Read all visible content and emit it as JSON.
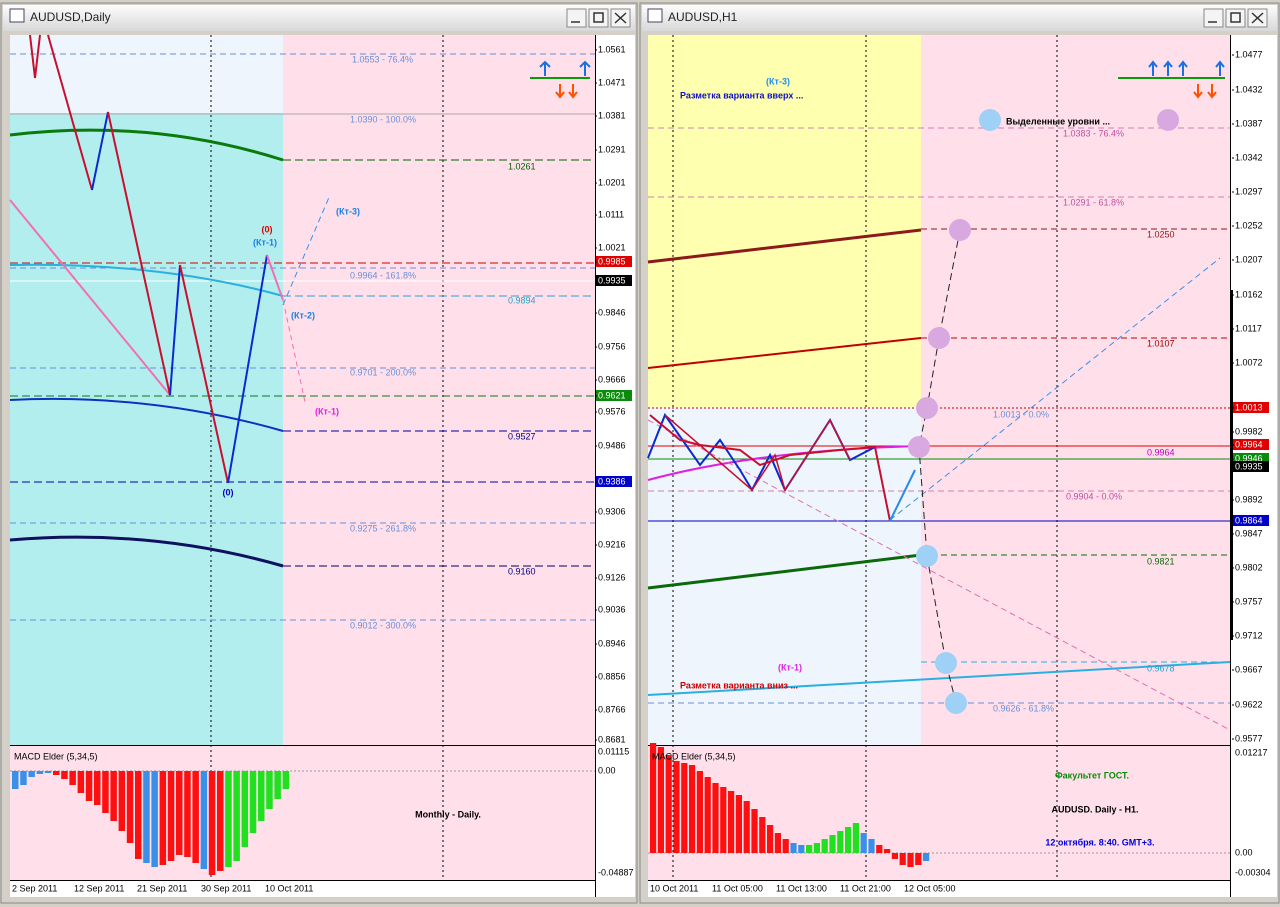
{
  "left": {
    "title": "AUDUSD,Daily",
    "price_axis": [
      "1.0561",
      "1.0471",
      "1.0381",
      "1.0291",
      "1.0201",
      "1.0111",
      "1.0021",
      "0.9985",
      "0.9935",
      "0.9846",
      "0.9756",
      "0.9666",
      "0.9621",
      "0.9576",
      "0.9486",
      "0.9386",
      "0.9306",
      "0.9216",
      "0.9126",
      "0.9036",
      "0.8946",
      "0.8856",
      "0.8766",
      "0.8681"
    ],
    "levels": [
      "1.0553 - 76.4%",
      "1.0390 - 100.0%",
      "1.0261",
      "0.9964 - 161.8%",
      "0.9894",
      "0.9701 - 200.0%",
      "0.9527",
      "0.9275 - 261.8%",
      "0.9160",
      "0.9012 - 300.0%"
    ],
    "annotations": [
      "(0)",
      "(Кт-1)",
      "(Кт-3)",
      "(Кт-2)",
      "(Кт-1)",
      "(0)"
    ],
    "macd": {
      "label": "MACD Elder (5,34,5)",
      "axis": [
        "0.01115",
        "0.00",
        "-0.04887"
      ]
    },
    "time_axis": [
      "2 Sep 2011",
      "12 Sep 2011",
      "21 Sep 2011",
      "30 Sep 2011",
      "10 Oct 2011"
    ],
    "caption": "Monthly - Daily."
  },
  "right": {
    "title": "AUDUSD,H1",
    "price_axis": [
      "1.0477",
      "1.0432",
      "1.0387",
      "1.0342",
      "1.0297",
      "1.0252",
      "1.0207",
      "1.0162",
      "1.0117",
      "1.0072",
      "1.0013",
      "0.9982",
      "0.9964",
      "0.9946",
      "0.9935",
      "0.9892",
      "0.9864",
      "0.9847",
      "0.9802",
      "0.9757",
      "0.9712",
      "0.9667",
      "0.9622",
      "0.9577"
    ],
    "levels": [
      "1.0383 - 76.4%",
      "1.0291 - 61.8%",
      "1.0250",
      "1.0107",
      "1.0013 - 0.0%",
      "0.9964",
      "0.9904 - 0.0%",
      "0.9821",
      "0.9678",
      "0.9626 - 61.8%"
    ],
    "annotations": [
      "(Кт-3)",
      "Разметка варианта вверх ...",
      "Выделенные уровни ...",
      "(Кт-1)",
      "Разметка варианта вниз ..."
    ],
    "macd": {
      "label": "MACD Elder (5,34,5)",
      "axis": [
        "0.01217",
        "0.00",
        "-0.00304"
      ]
    },
    "time_axis": [
      "10 Oct 2011",
      "11 Oct 05:00",
      "11 Oct 13:00",
      "11 Oct 21:00",
      "12 Oct 05:00"
    ],
    "captions": [
      "Факультет ГОСТ.",
      "AUDUSD. Daily - H1.",
      "12 октября. 8:40. GMT+3."
    ]
  }
}
